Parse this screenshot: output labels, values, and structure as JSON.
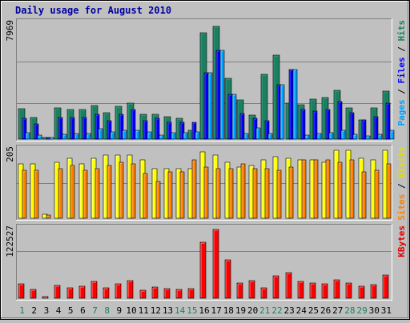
{
  "chart_data": {
    "type": "bar",
    "title": "Daily usage for August 2010",
    "categories": [
      "1",
      "2",
      "3",
      "4",
      "5",
      "6",
      "7",
      "8",
      "9",
      "10",
      "11",
      "12",
      "13",
      "14",
      "15",
      "16",
      "17",
      "18",
      "19",
      "20",
      "21",
      "22",
      "23",
      "24",
      "25",
      "26",
      "27",
      "28",
      "29",
      "30",
      "31"
    ],
    "weekend_days": [
      1,
      7,
      8,
      14,
      15,
      21,
      22,
      28,
      29
    ],
    "grid": true,
    "panels": [
      {
        "id": "hits-files-pages",
        "max_label": "7969",
        "ylim": [
          0,
          7969
        ],
        "axis_labels": [
          {
            "text": "Pages",
            "color": "#00a0ff"
          },
          {
            "text": " / ",
            "color": "#000000"
          },
          {
            "text": "Files",
            "color": "#0000ff"
          },
          {
            "text": " / ",
            "color": "#000000"
          },
          {
            "text": "Hits",
            "color": "#1a8060"
          }
        ],
        "series": [
          {
            "name": "Hits",
            "color": "#1a8060",
            "values": [
              2100,
              1500,
              0,
              2150,
              2050,
              2050,
              2300,
              1850,
              2250,
              2500,
              1700,
              1700,
              1550,
              1450,
              600,
              7350,
              7800,
              4200,
              2700,
              1650,
              4500,
              5800,
              2500,
              2400,
              2750,
              2900,
              3350,
              2150,
              1350,
              2150,
              3300
            ]
          },
          {
            "name": "Files",
            "color": "#0000ff",
            "values": [
              1450,
              1050,
              0,
              1500,
              1500,
              1500,
              1700,
              1300,
              1700,
              2050,
              1250,
              1450,
              1150,
              1150,
              1150,
              4600,
              6150,
              3100,
              1750,
              1450,
              1250,
              3750,
              4800,
              2050,
              1950,
              2050,
              2600,
              1800,
              1350,
              1550,
              2500
            ]
          },
          {
            "name": "Pages",
            "color": "#00a0ff",
            "values": [
              450,
              300,
              0,
              350,
              400,
              400,
              700,
              500,
              600,
              600,
              500,
              300,
              450,
              450,
              500,
              4600,
              6150,
              3100,
              400,
              800,
              400,
              3750,
              4800,
              300,
              400,
              450,
              600,
              350,
              200,
              350,
              600
            ]
          }
        ]
      },
      {
        "id": "visits-sites",
        "max_label": "205",
        "ylim": [
          0,
          205
        ],
        "axis_labels": [
          {
            "text": "Sites",
            "color": "#ff8000"
          },
          {
            "text": " / ",
            "color": "#000000"
          },
          {
            "text": "Visits",
            "color": "#e0e000"
          }
        ],
        "series": [
          {
            "name": "Visits",
            "color": "#ffff00",
            "values": [
              165,
              165,
              12,
              170,
              180,
              165,
              180,
              190,
              190,
              190,
              175,
              150,
              150,
              150,
              150,
              200,
              190,
              170,
              155,
              160,
              175,
              185,
              180,
              175,
              175,
              170,
              205,
              205,
              180,
              175,
              205
            ]
          },
          {
            "name": "Sites",
            "color": "#ff8000",
            "values": [
              145,
              145,
              10,
              150,
              160,
              145,
              150,
              160,
              170,
              165,
              135,
              110,
              140,
              140,
              175,
              155,
              150,
              150,
              165,
              150,
              150,
              145,
              155,
              175,
              175,
              175,
              170,
              175,
              140,
              145,
              165
            ]
          }
        ]
      },
      {
        "id": "kbytes",
        "max_label": "122527",
        "ylim": [
          0,
          122527
        ],
        "axis_labels": [
          {
            "text": "KBytes",
            "color": "#e00000"
          }
        ],
        "series": [
          {
            "name": "KBytes",
            "color": "#ff0000",
            "values": [
              25000,
              15000,
              0,
              23000,
              19000,
              21000,
              30000,
              19000,
              25000,
              32000,
              14000,
              20000,
              17000,
              15000,
              17000,
              100000,
              122000,
              68000,
              27000,
              31000,
              19000,
              40000,
              46000,
              30000,
              27000,
              26000,
              33000,
              27000,
              21000,
              24000,
              41000
            ]
          }
        ]
      }
    ]
  }
}
